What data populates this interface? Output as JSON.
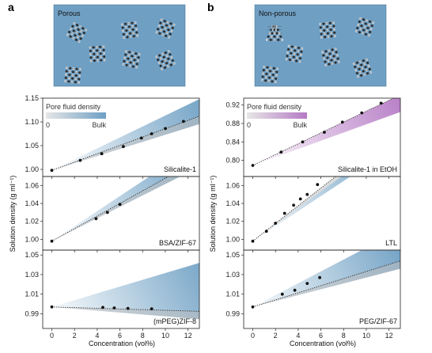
{
  "figure": {
    "panel_a_label": "a",
    "panel_b_label": "b",
    "schematic_a_title": "Porous",
    "schematic_b_title": "Non-porous",
    "legend_title": "Pore fluid density",
    "legend_low": "0",
    "legend_high": "Bulk",
    "colors": {
      "schematic_bg": "#6f9fc3",
      "blue": "#6fa0c4",
      "purple": "#b57ac4",
      "grey": "#bdbdbd",
      "bulk_line": "#222222"
    }
  },
  "chart_data": [
    {
      "id": "a-top",
      "type": "scatter",
      "column": "a",
      "label": "Silicalite-1",
      "xlim": [
        -0.8,
        13
      ],
      "ylim": [
        0.985,
        1.15
      ],
      "yticks": [
        1.0,
        1.05,
        1.1,
        1.15
      ],
      "ytick_labels": [
        "1.00",
        "1.05",
        "1.10",
        "1.15"
      ],
      "x": [
        0,
        2.5,
        4.4,
        6.3,
        7.9,
        8.8,
        10.0,
        11.6
      ],
      "y": [
        0.998,
        1.019,
        1.033,
        1.048,
        1.066,
        1.075,
        1.086,
        1.101
      ],
      "bulk_line": [
        [
          0,
          0.998
        ],
        [
          13,
          1.112
        ]
      ],
      "band_upper": [
        [
          0,
          0.998
        ],
        [
          13,
          1.148
        ]
      ],
      "fill": "blue",
      "legend": true
    },
    {
      "id": "a-mid",
      "type": "scatter",
      "column": "a",
      "label": "BSA/ZIF-67",
      "xlim": [
        -0.8,
        13
      ],
      "ylim": [
        0.988,
        1.07
      ],
      "yticks": [
        1.0,
        1.02,
        1.04,
        1.06
      ],
      "ytick_labels": [
        "1.00",
        "1.02",
        "1.04",
        "1.06"
      ],
      "x": [
        0,
        3.9,
        4.9,
        6.0
      ],
      "y": [
        0.998,
        1.023,
        1.03,
        1.039
      ],
      "bulk_line": [
        [
          0,
          0.998
        ],
        [
          13,
          1.089
        ]
      ],
      "band_upper": [
        [
          0,
          0.998
        ],
        [
          8.6,
          1.07
        ],
        [
          13,
          1.07
        ]
      ],
      "fill": "blue"
    },
    {
      "id": "a-bot",
      "type": "scatter",
      "column": "a",
      "label": "(mPEG)ZIF-8",
      "xlim": [
        -0.8,
        13
      ],
      "ylim": [
        0.975,
        1.055
      ],
      "yticks": [
        0.99,
        1.01,
        1.03,
        1.05
      ],
      "ytick_labels": [
        "0.99",
        "1.01",
        "1.03",
        "1.05"
      ],
      "x": [
        0,
        4.5,
        5.5,
        6.7,
        8.8
      ],
      "y": [
        0.997,
        0.9965,
        0.996,
        0.9955,
        0.995
      ],
      "bulk_line": [
        [
          0,
          0.997
        ],
        [
          13,
          0.9925
        ]
      ],
      "band_upper": [
        [
          0,
          0.997
        ],
        [
          13,
          1.042
        ]
      ],
      "fill": "blue",
      "xticks": [
        0,
        2,
        4,
        6,
        8,
        10,
        12
      ],
      "xtick_labels": [
        "0",
        "2",
        "4",
        "6",
        "8",
        "10",
        "12"
      ]
    },
    {
      "id": "b-top",
      "type": "scatter",
      "column": "b",
      "label": "Silicalite-1 in EtOH",
      "xlim": [
        -0.8,
        13
      ],
      "ylim": [
        0.765,
        0.935
      ],
      "yticks": [
        0.8,
        0.84,
        0.88,
        0.92
      ],
      "ytick_labels": [
        "0.80",
        "0.84",
        "0.88",
        "0.92"
      ],
      "x": [
        0,
        2.5,
        4.4,
        6.3,
        7.9,
        9.6,
        11.3
      ],
      "y": [
        0.789,
        0.818,
        0.84,
        0.861,
        0.883,
        0.903,
        0.924
      ],
      "bulk_line": [
        [
          0,
          0.789
        ],
        [
          13,
          0.942
        ]
      ],
      "band_upper": [
        [
          0,
          0.789
        ],
        [
          13,
          0.942
        ]
      ],
      "band_lower": [
        [
          0,
          0.789
        ],
        [
          13,
          0.905
        ]
      ],
      "fill": "purple",
      "legend": true
    },
    {
      "id": "b-mid",
      "type": "scatter",
      "column": "b",
      "label": "LTL",
      "xlim": [
        -0.8,
        13
      ],
      "ylim": [
        0.988,
        1.07
      ],
      "yticks": [
        1.0,
        1.02,
        1.04,
        1.06
      ],
      "ytick_labels": [
        "1.00",
        "1.02",
        "1.04",
        "1.06"
      ],
      "x": [
        0,
        1.2,
        2.0,
        2.8,
        3.6,
        4.2,
        4.8,
        5.7
      ],
      "y": [
        0.998,
        1.009,
        1.018,
        1.029,
        1.038,
        1.045,
        1.05,
        1.061
      ],
      "bulk_line": [
        [
          0,
          0.998
        ],
        [
          7.3,
          1.07
        ]
      ],
      "band_upper": [
        [
          0,
          0.998
        ],
        [
          8.6,
          1.07
        ],
        [
          13,
          1.07
        ]
      ],
      "fill": "blue"
    },
    {
      "id": "b-bot",
      "type": "scatter",
      "column": "b",
      "label": "PEG/ZIF-67",
      "xlim": [
        -0.8,
        13
      ],
      "ylim": [
        0.975,
        1.055
      ],
      "yticks": [
        0.99,
        1.01,
        1.03,
        1.05
      ],
      "ytick_labels": [
        "0.99",
        "1.01",
        "1.03",
        "1.05"
      ],
      "x": [
        0,
        2.6,
        3.7,
        4.8,
        5.9
      ],
      "y": [
        0.997,
        1.01,
        1.014,
        1.021,
        1.027
      ],
      "bulk_line": [
        [
          0,
          0.997
        ],
        [
          13,
          1.044
        ]
      ],
      "band_upper": [
        [
          0,
          0.997
        ],
        [
          9.6,
          1.055
        ],
        [
          13,
          1.055
        ]
      ],
      "fill": "blue",
      "xticks": [
        0,
        2,
        4,
        6,
        8,
        10,
        12
      ],
      "xtick_labels": [
        "0",
        "2",
        "4",
        "6",
        "8",
        "10",
        "12"
      ]
    }
  ],
  "axes": {
    "xlabel": "Concentration (vol%)",
    "ylabel": "Solution density (g ml⁻¹)"
  }
}
